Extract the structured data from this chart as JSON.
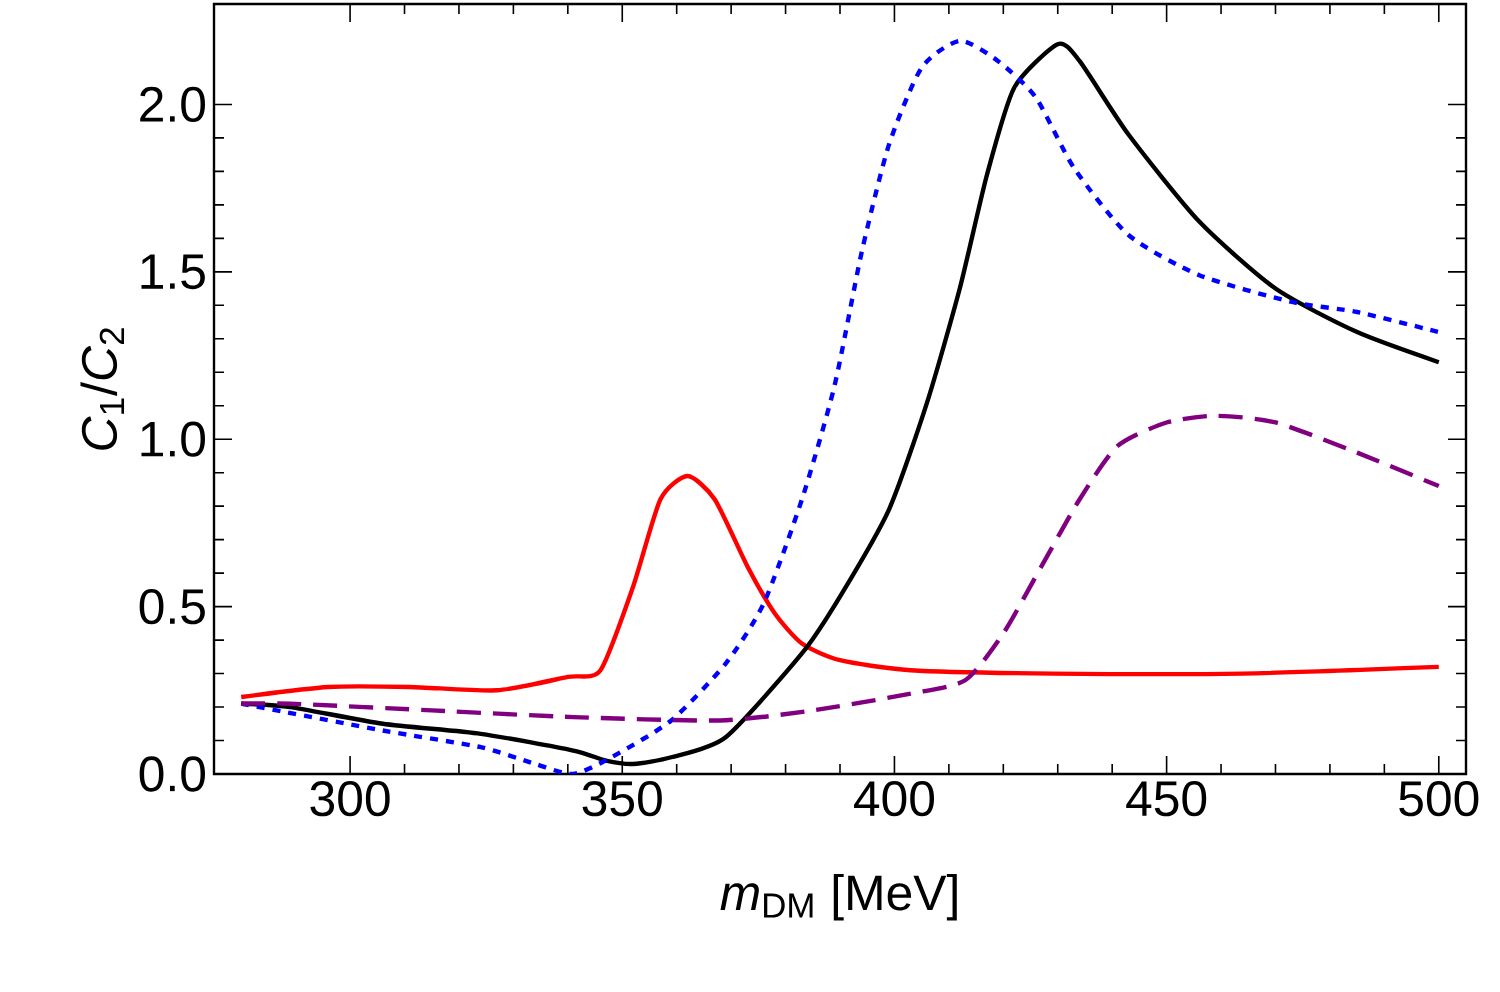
{
  "chart_data": {
    "type": "line",
    "xlabel": "*m*$_{DM}$ [MeV]",
    "ylabel": "*C*$_{1}$/*C*$_{2}$",
    "xlim": [
      275,
      505
    ],
    "ylim": [
      0,
      2.3
    ],
    "xticks": [
      300,
      350,
      400,
      450,
      500
    ],
    "yticks": [
      {
        "value": 0,
        "label": "0.0"
      },
      {
        "value": 0.5,
        "label": "0.5"
      },
      {
        "value": 1,
        "label": "1.0"
      },
      {
        "value": 1.5,
        "label": "1.5"
      },
      {
        "value": 2,
        "label": "2.0"
      }
    ],
    "series": [
      {
        "color": "#ff0000",
        "line_style": "solid",
        "x": [
          280,
          296,
          311,
          327,
          340,
          346,
          352,
          357,
          362,
          367,
          373,
          378,
          383,
          390,
          403,
          429,
          464,
          500
        ],
        "values": [
          0.23,
          0.26,
          0.26,
          0.25,
          0.29,
          0.31,
          0.56,
          0.82,
          0.89,
          0.82,
          0.62,
          0.48,
          0.39,
          0.34,
          0.31,
          0.3,
          0.3,
          0.32
        ]
      },
      {
        "color": "#000000",
        "line_style": "solid",
        "x": [
          280,
          289,
          306,
          324,
          341,
          347,
          352,
          359,
          369,
          383,
          390,
          399,
          406,
          412,
          417,
          422,
          430,
          434,
          443,
          456,
          470,
          485,
          500
        ],
        "values": [
          0.21,
          0.2,
          0.15,
          0.12,
          0.07,
          0.04,
          0.03,
          0.05,
          0.11,
          0.36,
          0.53,
          0.79,
          1.11,
          1.45,
          1.79,
          2.05,
          2.18,
          2.13,
          1.91,
          1.65,
          1.45,
          1.32,
          1.23
        ]
      },
      {
        "color": "#0000ff",
        "line_style": "dotted",
        "x": [
          280,
          306,
          324,
          334,
          341,
          348,
          359,
          369,
          376,
          383,
          389,
          394,
          399,
          405,
          412,
          419,
          426,
          433,
          443,
          456,
          473,
          485,
          500
        ],
        "values": [
          0.21,
          0.13,
          0.08,
          0.03,
          0.0,
          0.05,
          0.16,
          0.33,
          0.51,
          0.82,
          1.16,
          1.56,
          1.88,
          2.11,
          2.19,
          2.13,
          2.02,
          1.81,
          1.61,
          1.49,
          1.41,
          1.38,
          1.32
        ]
      },
      {
        "color": "#800080",
        "line_style": "dashed",
        "x": [
          280,
          289,
          315,
          341,
          368,
          385,
          403,
          413,
          420,
          427,
          434,
          441,
          450,
          459,
          470,
          485,
          500
        ],
        "values": [
          0.21,
          0.21,
          0.19,
          0.17,
          0.16,
          0.19,
          0.24,
          0.28,
          0.42,
          0.62,
          0.82,
          0.98,
          1.05,
          1.07,
          1.05,
          0.96,
          0.86
        ]
      }
    ]
  }
}
